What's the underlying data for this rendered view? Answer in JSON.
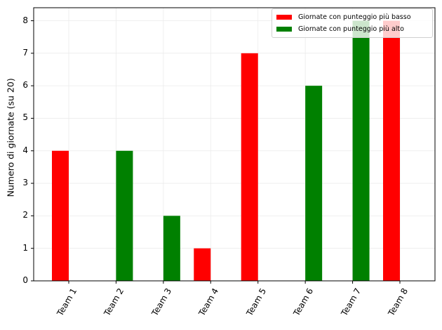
{
  "chart_data": {
    "type": "bar",
    "title": "",
    "xlabel": "",
    "ylabel": "Numero di giornate (su 20)",
    "categories": [
      "Team 1",
      "Team 2",
      "Team 3",
      "Team 4",
      "Team 5",
      "Team 6",
      "Team 7",
      "Team 8"
    ],
    "series": [
      {
        "name": "Giornate con punteggio più basso",
        "color": "#ff0000",
        "values": [
          4,
          0,
          0,
          1,
          7,
          0,
          0,
          8
        ]
      },
      {
        "name": "Giornate con punteggio più alto",
        "color": "#008000",
        "values": [
          0,
          4,
          2,
          0,
          0,
          6,
          8,
          0
        ]
      }
    ],
    "yticks": [
      0,
      1,
      2,
      3,
      4,
      5,
      6,
      7,
      8
    ],
    "ylim": [
      0,
      8.4
    ],
    "grid": true,
    "legend_position": "upper right",
    "xtick_rotation": 60
  },
  "legend": {
    "items": [
      {
        "label": "Giornate con punteggio più basso",
        "color": "#ff0000"
      },
      {
        "label": "Giornate con punteggio più alto",
        "color": "#008000"
      }
    ]
  }
}
